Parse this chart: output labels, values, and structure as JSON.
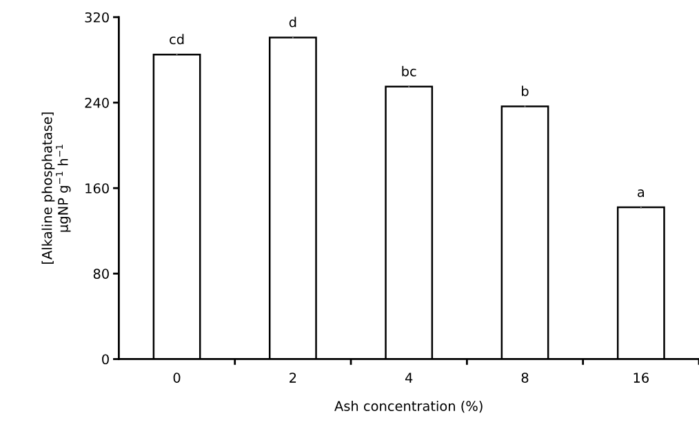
{
  "chart_data": {
    "type": "bar",
    "xlabel": "Ash concentration (%)",
    "ylabel": "[Alkaline phosphatase]\nμgNP g$^{−1}$ h$^{−1}$",
    "categories": [
      "0",
      "2",
      "4",
      "8",
      "16"
    ],
    "values": [
      285,
      301,
      255,
      236.5,
      142
    ],
    "errors": [
      1,
      1,
      1,
      1,
      1
    ],
    "color": "#ffffff",
    "ylim": [
      0,
      320
    ],
    "yticks": [
      0,
      80,
      160,
      240,
      320
    ],
    "grid": false,
    "annotations": [
      {
        "text": "cd",
        "x": "0",
        "y": 285
      },
      {
        "text": "d",
        "x": "2",
        "y": 301
      },
      {
        "text": "bc",
        "x": "4",
        "y": 255
      },
      {
        "text": "b",
        "x": "8",
        "y": 236.5
      },
      {
        "text": "a",
        "x": "16",
        "y": 142
      }
    ]
  }
}
